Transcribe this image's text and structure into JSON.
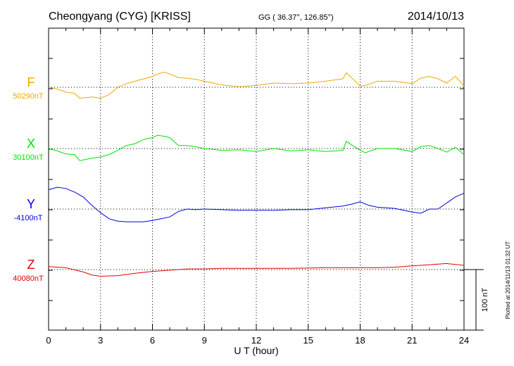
{
  "header": {
    "station": "Cheongyang (CYG)  [KRISS]",
    "coords": "GG ( 36.37°, 126.85°)",
    "date": "2014/10/13"
  },
  "side_note": "Plotted at 2014/11/13 01:32 UT",
  "scale_label": "100 nT",
  "colors": {
    "F": "#f0a800",
    "X": "#00e000",
    "Y": "#0000e0",
    "Z": "#e00000",
    "axis": "#000000",
    "grid": "#000000"
  },
  "chart_data": {
    "type": "line",
    "title": "Cheongyang (CYG)  [KRISS]",
    "xlabel": "U T (hour)",
    "xlim": [
      0,
      24
    ],
    "x_ticks": [
      0,
      3,
      6,
      9,
      12,
      15,
      18,
      21,
      24
    ],
    "x_tick_labels": [
      "0",
      "3",
      "6",
      "9",
      "12",
      "15",
      "18",
      "21",
      "24"
    ],
    "nt_per_division": 100,
    "grid": true,
    "series": [
      {
        "name": "F",
        "baseline_label": "50290nT",
        "baseline_nT": 50290,
        "x": [
          0,
          0.5,
          1,
          1.5,
          1.8,
          2.5,
          3,
          3.5,
          4,
          4.5,
          5,
          5.5,
          6,
          6.3,
          6.7,
          7,
          7.5,
          8,
          8.5,
          9,
          10,
          11,
          12,
          13,
          14,
          15,
          16,
          17,
          17.2,
          17.5,
          18,
          18.3,
          19,
          20,
          21,
          21.5,
          22,
          22.5,
          23,
          23.5,
          24
        ],
        "values": [
          50290,
          50287,
          50282,
          50280,
          50272,
          50274,
          50272,
          50278,
          50290,
          50296,
          50300,
          50304,
          50308,
          50312,
          50315,
          50312,
          50306,
          50305,
          50303,
          50300,
          50294,
          50291,
          50293,
          50297,
          50296,
          50297,
          50300,
          50304,
          50314,
          50306,
          50292,
          50293,
          50300,
          50300,
          50296,
          50305,
          50308,
          50304,
          50297,
          50308,
          50292
        ]
      },
      {
        "name": "X",
        "baseline_label": "30100nT",
        "baseline_nT": 30100,
        "x": [
          0,
          0.5,
          1,
          1.5,
          1.8,
          2.5,
          3,
          3.5,
          4,
          4.5,
          5,
          5.5,
          6,
          6.3,
          6.7,
          7,
          7.5,
          8,
          8.5,
          9,
          10,
          11,
          12,
          13,
          14,
          15,
          16,
          17,
          17.2,
          17.5,
          18,
          18.3,
          19,
          20,
          21,
          21.5,
          22,
          22.5,
          23,
          23.5,
          24
        ],
        "values": [
          30100,
          30096,
          30091,
          30090,
          30080,
          30084,
          30086,
          30090,
          30097,
          30105,
          30108,
          30115,
          30118,
          30122,
          30120,
          30118,
          30105,
          30105,
          30103,
          30100,
          30097,
          30098,
          30095,
          30100,
          30096,
          30098,
          30095,
          30097,
          30112,
          30106,
          30097,
          30093,
          30100,
          30100,
          30095,
          30103,
          30105,
          30100,
          30094,
          30102,
          30090
        ]
      },
      {
        "name": "Y",
        "baseline_label": "-4100nT",
        "baseline_nT": -4100,
        "x": [
          0,
          0.5,
          1,
          1.5,
          2,
          2.5,
          3,
          3.5,
          4,
          4.5,
          5,
          5.5,
          6,
          6.5,
          7,
          7.5,
          8,
          8.5,
          9,
          10,
          11,
          12,
          13,
          14,
          15,
          16,
          17,
          17.5,
          18,
          18.5,
          19,
          20,
          21,
          21.5,
          22,
          22.5,
          23,
          23.5,
          24
        ],
        "values": [
          -4068,
          -4064,
          -4066,
          -4072,
          -4080,
          -4094,
          -4106,
          -4116,
          -4120,
          -4121,
          -4121,
          -4121,
          -4119,
          -4116,
          -4113,
          -4104,
          -4100,
          -4101,
          -4100,
          -4101,
          -4102,
          -4102,
          -4102,
          -4101,
          -4101,
          -4098,
          -4095,
          -4092,
          -4088,
          -4094,
          -4097,
          -4099,
          -4105,
          -4107,
          -4100,
          -4100,
          -4090,
          -4080,
          -4074
        ]
      },
      {
        "name": "Z",
        "baseline_label": "40080nT",
        "baseline_nT": 40080,
        "x": [
          0,
          1,
          2,
          2.5,
          3,
          4,
          5,
          6,
          7,
          8,
          9,
          10,
          12,
          14,
          16,
          18,
          19,
          20,
          21,
          22,
          23,
          24
        ],
        "values": [
          40085,
          40083,
          40076,
          40071,
          40069,
          40070,
          40074,
          40077,
          40079,
          40081,
          40081,
          40082,
          40082,
          40082,
          40083,
          40083,
          40083,
          40084,
          40086,
          40088,
          40090,
          40087
        ]
      }
    ]
  }
}
